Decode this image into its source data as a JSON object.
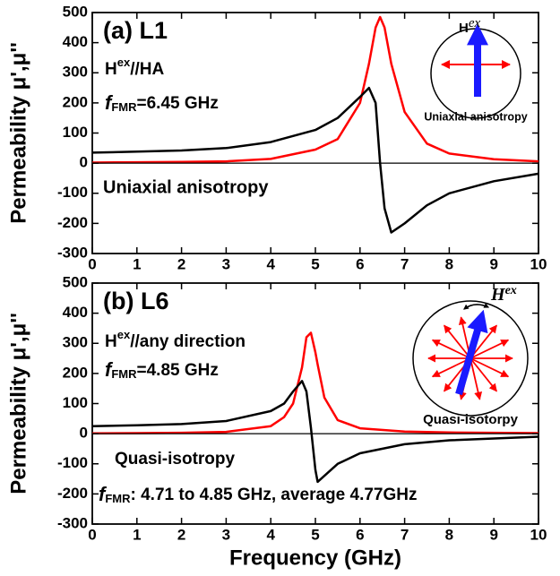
{
  "chart_data": [
    {
      "type": "line",
      "title": "(a) L1",
      "y_label": "Permeability μ',μ''",
      "annotations": [
        "H",
        "ex",
        "//HA",
        "f",
        "FMR",
        "=6.45 GHz",
        "Uniaxial anisotropy",
        "H",
        "ex",
        "Uniaxial anisotropy"
      ],
      "x": [
        0,
        1,
        2,
        3,
        4,
        5,
        5.5,
        6,
        6.2,
        6.35,
        6.45,
        6.55,
        6.7,
        7,
        7.5,
        8,
        9,
        10
      ],
      "series": [
        {
          "color": "#000000",
          "values": [
            35,
            38,
            42,
            50,
            70,
            110,
            150,
            220,
            250,
            200,
            0,
            -150,
            -230,
            -200,
            -140,
            -100,
            -60,
            -35
          ]
        },
        {
          "color": "#ff0000",
          "values": [
            2,
            3,
            4,
            6,
            14,
            45,
            80,
            200,
            330,
            450,
            485,
            450,
            330,
            170,
            65,
            32,
            13,
            6
          ]
        }
      ],
      "xlim": [
        0,
        10
      ],
      "xticks": [
        0,
        1,
        2,
        3,
        4,
        5,
        6,
        7,
        8,
        9,
        10
      ],
      "ylim": [
        -300,
        500
      ],
      "yticks": [
        -300,
        -200,
        -100,
        0,
        100,
        200,
        300,
        400,
        500
      ]
    },
    {
      "type": "line",
      "title": "(b) L6",
      "y_label": "Permeability μ',μ''",
      "x_label": "Frequency (GHz)",
      "annotations": [
        "H",
        "ex",
        "//any direction",
        "f",
        "FMR",
        "=4.85 GHz",
        "Quasi-isotropy",
        "H",
        "ex",
        "Quasi-isotorpy",
        "f",
        "FMR",
        ": 4.71 to 4.85 GHz, average 4.77GHz"
      ],
      "x": [
        0,
        1,
        2,
        3,
        4,
        4.3,
        4.5,
        4.7,
        4.8,
        4.9,
        5.0,
        5.05,
        5.2,
        5.5,
        6,
        7,
        8,
        10
      ],
      "series": [
        {
          "color": "#000000",
          "values": [
            25,
            28,
            32,
            42,
            75,
            100,
            140,
            175,
            140,
            20,
            -120,
            -160,
            -140,
            -100,
            -65,
            -35,
            -22,
            -10
          ]
        },
        {
          "color": "#ff0000",
          "values": [
            1,
            2,
            3,
            6,
            25,
            55,
            100,
            220,
            320,
            335,
            270,
            230,
            120,
            45,
            18,
            7,
            4,
            2
          ]
        }
      ],
      "xlim": [
        0,
        10
      ],
      "xticks": [
        0,
        1,
        2,
        3,
        4,
        5,
        6,
        7,
        8,
        9,
        10
      ],
      "ylim": [
        -300,
        500
      ],
      "yticks": [
        -300,
        -200,
        -100,
        0,
        100,
        200,
        300,
        400,
        500
      ]
    }
  ]
}
